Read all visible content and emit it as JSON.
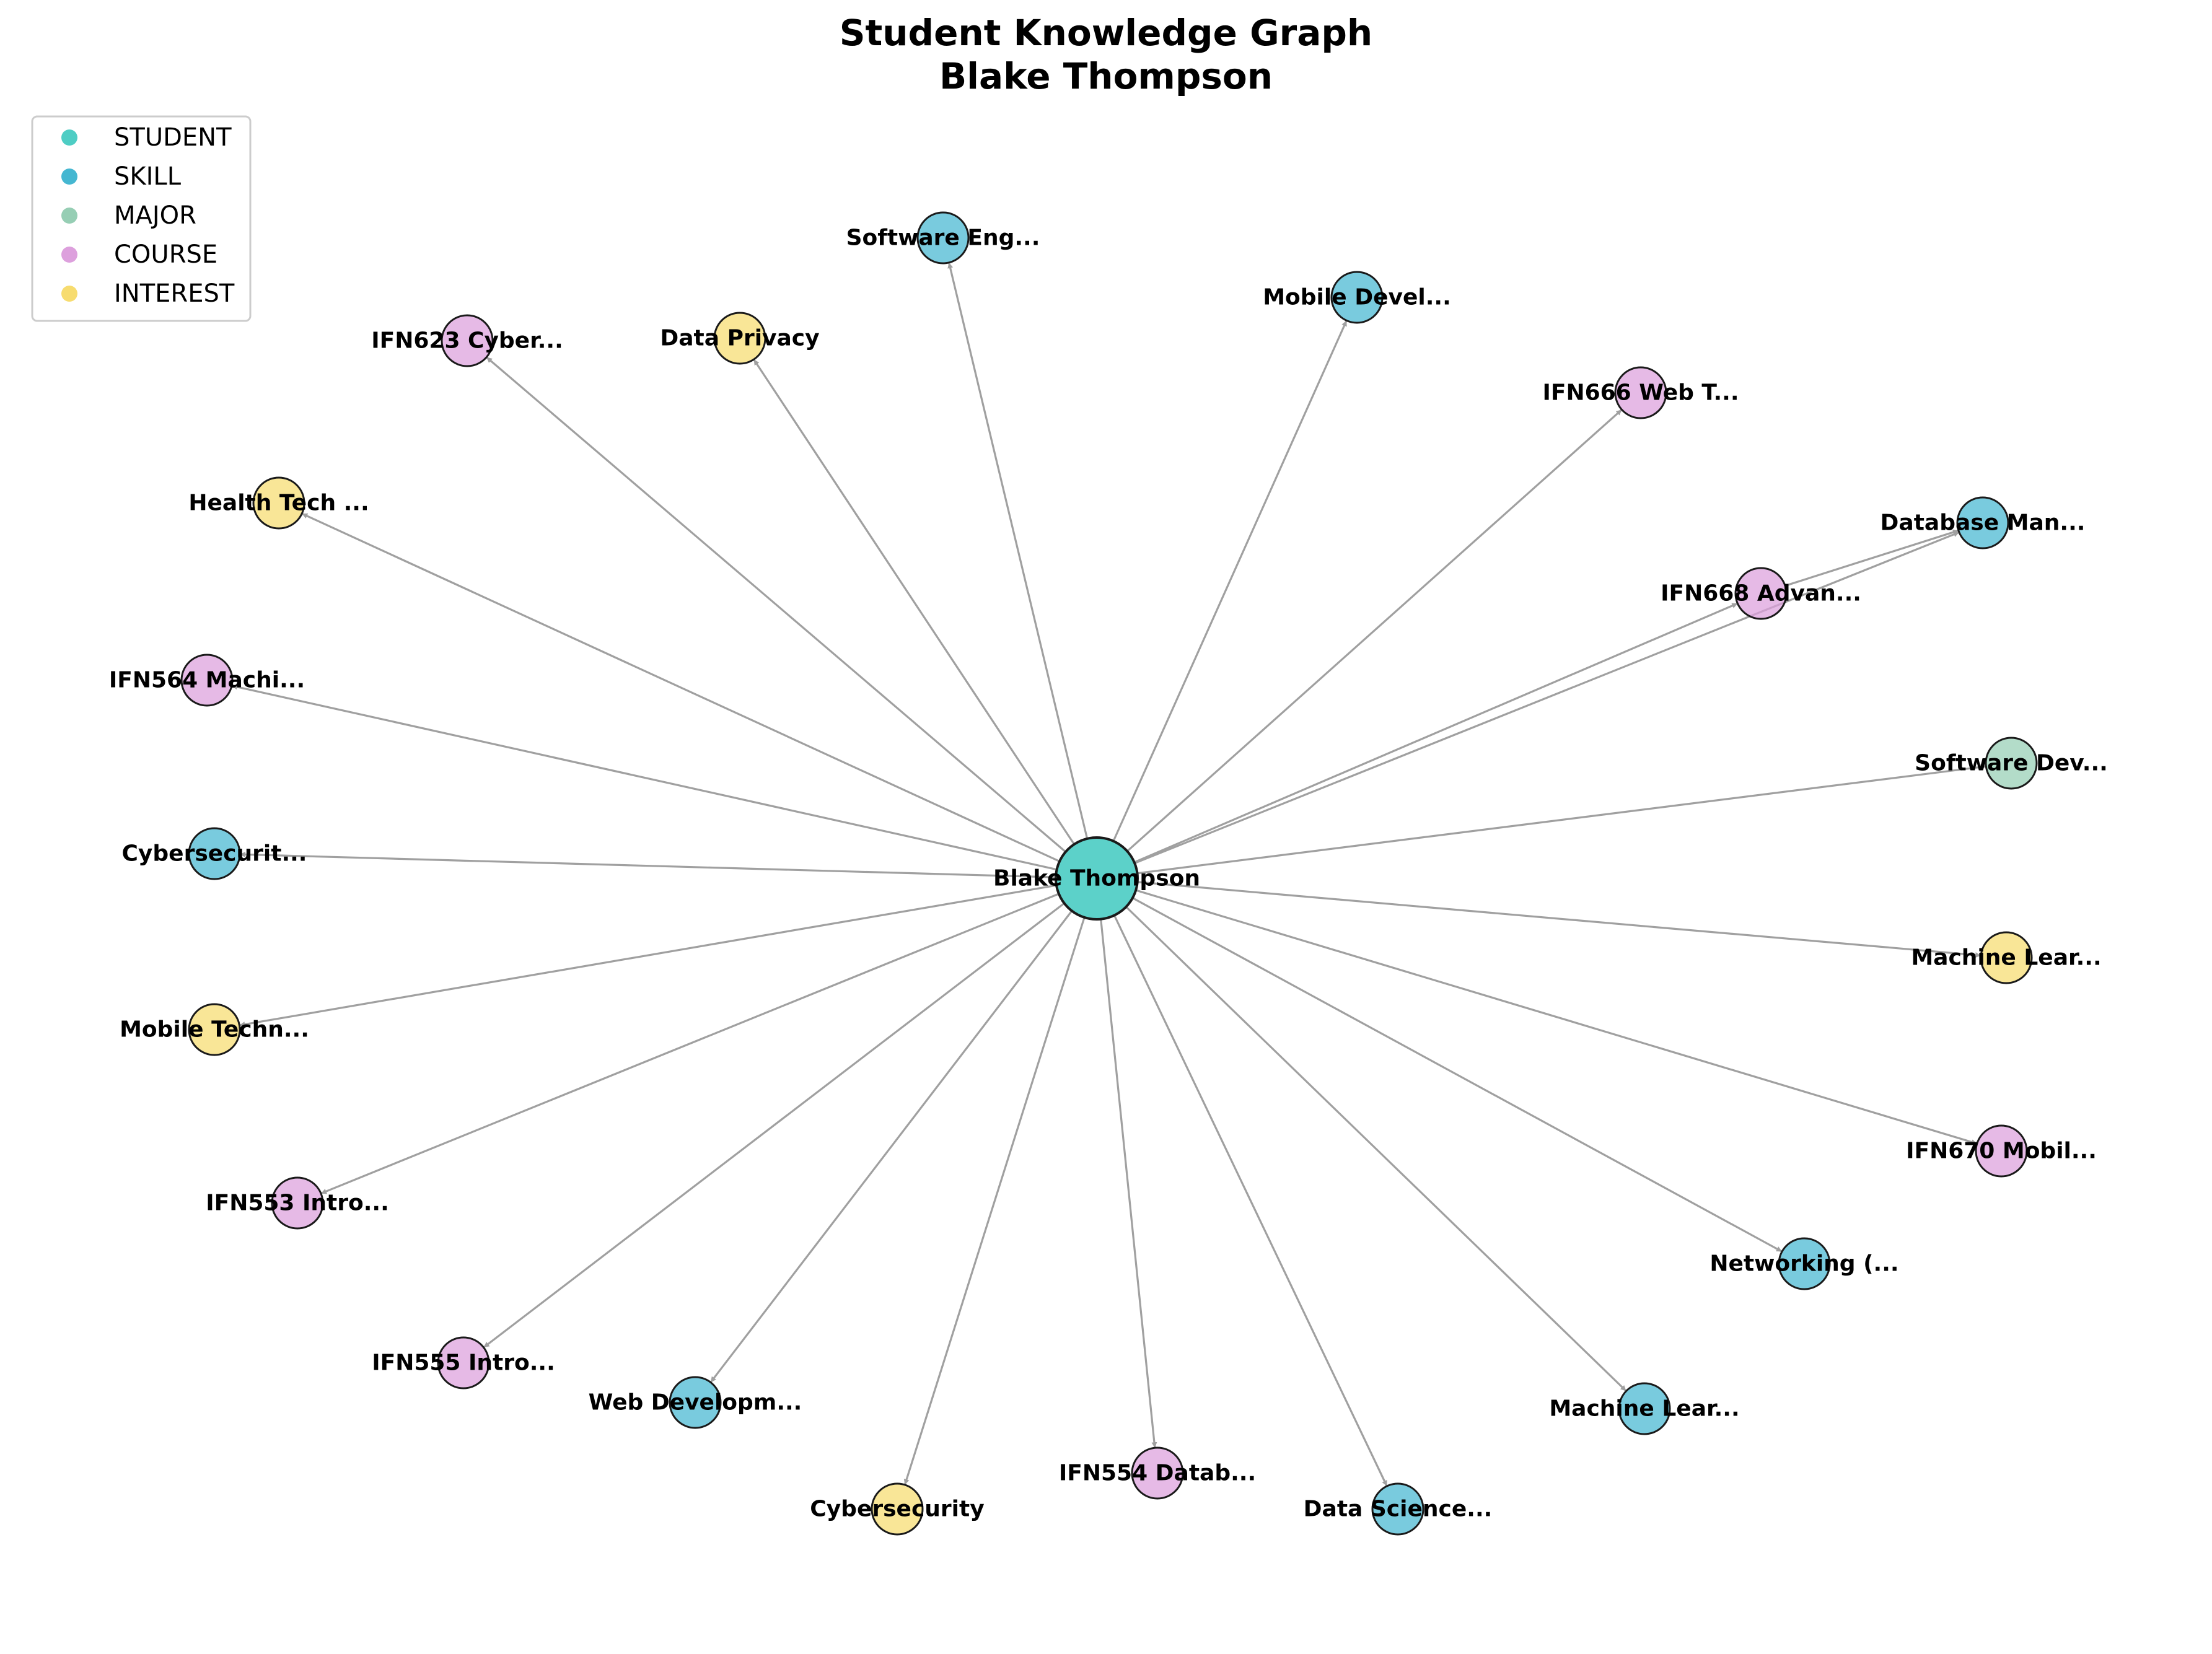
{
  "title": {
    "line1": "Student Knowledge Graph",
    "line2": "Blake Thompson"
  },
  "colors": {
    "STUDENT": "#4ecdc4",
    "SKILL": "#45b7d1",
    "MAJOR": "#96ceb4",
    "COURSE": "#dda0dd",
    "INTEREST": "#f7dc6f",
    "edge": "#a0a0a0",
    "node_stroke": "#1a1a1a"
  },
  "legend": [
    {
      "type": "STUDENT",
      "label": "STUDENT"
    },
    {
      "type": "SKILL",
      "label": "SKILL"
    },
    {
      "type": "MAJOR",
      "label": "MAJOR"
    },
    {
      "type": "COURSE",
      "label": "COURSE"
    },
    {
      "type": "INTEREST",
      "label": "INTEREST"
    }
  ],
  "center": {
    "id": "blake",
    "label": "Blake Thompson",
    "type": "STUDENT"
  },
  "nodes": [
    {
      "id": "software-eng",
      "label": "Software Eng...",
      "type": "SKILL"
    },
    {
      "id": "mobile-devel",
      "label": "Mobile Devel...",
      "type": "SKILL"
    },
    {
      "id": "ifn666",
      "label": "IFN666 Web T...",
      "type": "COURSE"
    },
    {
      "id": "database-man",
      "label": "Database Man...",
      "type": "SKILL"
    },
    {
      "id": "ifn668",
      "label": "IFN668 Advan...",
      "type": "COURSE"
    },
    {
      "id": "software-dev",
      "label": "Software Dev...",
      "type": "MAJOR"
    },
    {
      "id": "machine-lear-interest",
      "label": "Machine Lear...",
      "type": "INTEREST"
    },
    {
      "id": "ifn670",
      "label": "IFN670 Mobil...",
      "type": "COURSE"
    },
    {
      "id": "networking",
      "label": "Networking (...",
      "type": "SKILL"
    },
    {
      "id": "machine-lear-skill",
      "label": "Machine Lear...",
      "type": "SKILL"
    },
    {
      "id": "data-science",
      "label": "Data Science...",
      "type": "SKILL"
    },
    {
      "id": "ifn554",
      "label": "IFN554 Datab...",
      "type": "COURSE"
    },
    {
      "id": "cybersecurity-interest",
      "label": "Cybersecurity",
      "type": "INTEREST"
    },
    {
      "id": "web-developm",
      "label": "Web Developm...",
      "type": "SKILL"
    },
    {
      "id": "ifn555",
      "label": "IFN555 Intro...",
      "type": "COURSE"
    },
    {
      "id": "ifn553",
      "label": "IFN553 Intro...",
      "type": "COURSE"
    },
    {
      "id": "mobile-techn",
      "label": "Mobile Techn...",
      "type": "INTEREST"
    },
    {
      "id": "cybersecurit-skill",
      "label": "Cybersecurit...",
      "type": "SKILL"
    },
    {
      "id": "ifn564",
      "label": "IFN564 Machi...",
      "type": "COURSE"
    },
    {
      "id": "health-tech",
      "label": "Health Tech ...",
      "type": "INTEREST"
    },
    {
      "id": "ifn623",
      "label": "IFN623 Cyber...",
      "type": "COURSE"
    },
    {
      "id": "data-privacy",
      "label": "Data Privacy",
      "type": "INTEREST"
    }
  ],
  "edges": [
    {
      "from": "blake",
      "to": "software-eng"
    },
    {
      "from": "blake",
      "to": "mobile-devel"
    },
    {
      "from": "blake",
      "to": "ifn666"
    },
    {
      "from": "blake",
      "to": "database-man"
    },
    {
      "from": "blake",
      "to": "ifn668"
    },
    {
      "from": "ifn668",
      "to": "database-man"
    },
    {
      "from": "blake",
      "to": "software-dev"
    },
    {
      "from": "blake",
      "to": "machine-lear-interest"
    },
    {
      "from": "blake",
      "to": "ifn670"
    },
    {
      "from": "blake",
      "to": "networking"
    },
    {
      "from": "blake",
      "to": "machine-lear-skill"
    },
    {
      "from": "blake",
      "to": "data-science"
    },
    {
      "from": "blake",
      "to": "ifn554"
    },
    {
      "from": "blake",
      "to": "cybersecurity-interest"
    },
    {
      "from": "blake",
      "to": "web-developm"
    },
    {
      "from": "blake",
      "to": "ifn555"
    },
    {
      "from": "blake",
      "to": "ifn553"
    },
    {
      "from": "blake",
      "to": "mobile-techn"
    },
    {
      "from": "blake",
      "to": "cybersecurit-skill"
    },
    {
      "from": "blake",
      "to": "ifn564"
    },
    {
      "from": "blake",
      "to": "health-tech"
    },
    {
      "from": "blake",
      "to": "ifn623"
    },
    {
      "from": "blake",
      "to": "data-privacy"
    }
  ]
}
